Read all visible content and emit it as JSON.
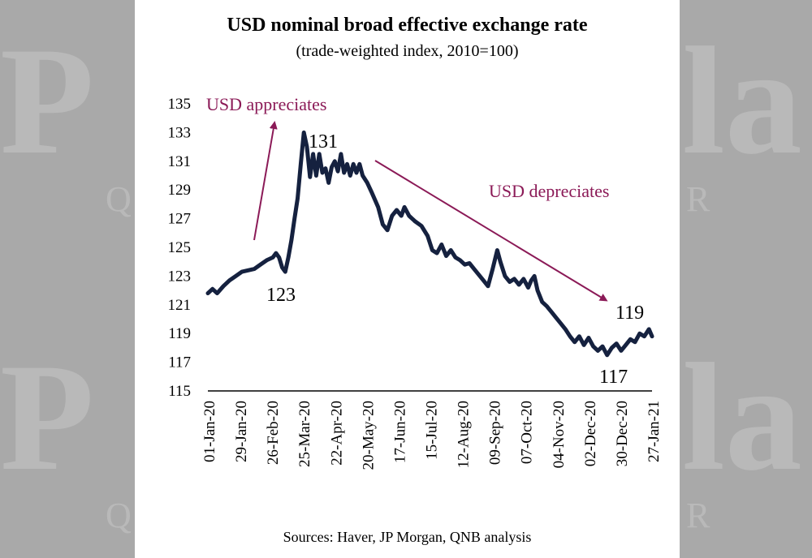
{
  "chart_data": {
    "type": "line",
    "title": "USD nominal broad effective exchange rate",
    "subtitle": "(trade-weighted index, 2010=100)",
    "source": "Sources: Haver, JP Morgan, QNB analysis",
    "ylim": [
      115,
      135
    ],
    "yticks": [
      135,
      133,
      131,
      129,
      127,
      125,
      123,
      121,
      119,
      117,
      115
    ],
    "xticks": [
      "01-Jan-20",
      "29-Jan-20",
      "26-Feb-20",
      "25-Mar-20",
      "22-Apr-20",
      "20-May-20",
      "17-Jun-20",
      "15-Jul-20",
      "12-Aug-20",
      "09-Sep-20",
      "07-Oct-20",
      "04-Nov-20",
      "02-Dec-20",
      "30-Dec-20",
      "27-Jan-21"
    ],
    "grid": false,
    "line_color": "#15213f",
    "annotation_color": "#8b1a57",
    "series": [
      {
        "values": [
          [
            0,
            121.8
          ],
          [
            3,
            122.1
          ],
          [
            6,
            121.8
          ],
          [
            10,
            122.3
          ],
          [
            14,
            122.7
          ],
          [
            18,
            123.0
          ],
          [
            22,
            123.3
          ],
          [
            26,
            123.4
          ],
          [
            30,
            123.5
          ],
          [
            34,
            123.8
          ],
          [
            38,
            124.1
          ],
          [
            42,
            124.3
          ],
          [
            44,
            124.6
          ],
          [
            46,
            124.3
          ],
          [
            48,
            123.6
          ],
          [
            50,
            123.3
          ],
          [
            52,
            124.3
          ],
          [
            54,
            125.5
          ],
          [
            56,
            127.0
          ],
          [
            58,
            128.4
          ],
          [
            60,
            130.8
          ],
          [
            62,
            133.0
          ],
          [
            64,
            132.0
          ],
          [
            66,
            129.9
          ],
          [
            68,
            131.5
          ],
          [
            70,
            130.0
          ],
          [
            72,
            131.5
          ],
          [
            74,
            130.2
          ],
          [
            76,
            130.5
          ],
          [
            78,
            129.5
          ],
          [
            80,
            130.6
          ],
          [
            82,
            131.0
          ],
          [
            84,
            130.3
          ],
          [
            86,
            131.5
          ],
          [
            88,
            130.2
          ],
          [
            90,
            130.8
          ],
          [
            92,
            130.0
          ],
          [
            94,
            130.8
          ],
          [
            96,
            130.2
          ],
          [
            98,
            130.8
          ],
          [
            100,
            130.0
          ],
          [
            103,
            129.5
          ],
          [
            106,
            128.8
          ],
          [
            110,
            127.8
          ],
          [
            113,
            126.6
          ],
          [
            116,
            126.2
          ],
          [
            119,
            127.2
          ],
          [
            122,
            127.6
          ],
          [
            125,
            127.2
          ],
          [
            127,
            127.8
          ],
          [
            130,
            127.2
          ],
          [
            134,
            126.8
          ],
          [
            138,
            126.5
          ],
          [
            142,
            125.8
          ],
          [
            145,
            124.8
          ],
          [
            148,
            124.6
          ],
          [
            151,
            125.2
          ],
          [
            154,
            124.4
          ],
          [
            157,
            124.8
          ],
          [
            160,
            124.3
          ],
          [
            163,
            124.1
          ],
          [
            166,
            123.8
          ],
          [
            169,
            123.9
          ],
          [
            172,
            123.5
          ],
          [
            175,
            123.1
          ],
          [
            178,
            122.7
          ],
          [
            181,
            122.3
          ],
          [
            184,
            123.5
          ],
          [
            187,
            124.8
          ],
          [
            189,
            124.0
          ],
          [
            192,
            123.0
          ],
          [
            195,
            122.6
          ],
          [
            198,
            122.8
          ],
          [
            201,
            122.4
          ],
          [
            204,
            122.8
          ],
          [
            207,
            122.2
          ],
          [
            209,
            122.7
          ],
          [
            211,
            123.0
          ],
          [
            213,
            122.0
          ],
          [
            216,
            121.2
          ],
          [
            219,
            120.9
          ],
          [
            222,
            120.5
          ],
          [
            225,
            120.1
          ],
          [
            228,
            119.7
          ],
          [
            231,
            119.3
          ],
          [
            234,
            118.8
          ],
          [
            237,
            118.4
          ],
          [
            240,
            118.8
          ],
          [
            243,
            118.2
          ],
          [
            246,
            118.7
          ],
          [
            249,
            118.1
          ],
          [
            252,
            117.8
          ],
          [
            255,
            118.1
          ],
          [
            258,
            117.5
          ],
          [
            261,
            118.0
          ],
          [
            264,
            118.3
          ],
          [
            267,
            117.8
          ],
          [
            270,
            118.2
          ],
          [
            273,
            118.6
          ],
          [
            276,
            118.4
          ],
          [
            279,
            119.0
          ],
          [
            282,
            118.8
          ],
          [
            285,
            119.3
          ],
          [
            287,
            118.8
          ]
        ]
      }
    ],
    "point_labels": [
      "123",
      "131",
      "119",
      "117"
    ],
    "annotations": [
      "USD appreciates",
      "USD depreciates"
    ]
  }
}
